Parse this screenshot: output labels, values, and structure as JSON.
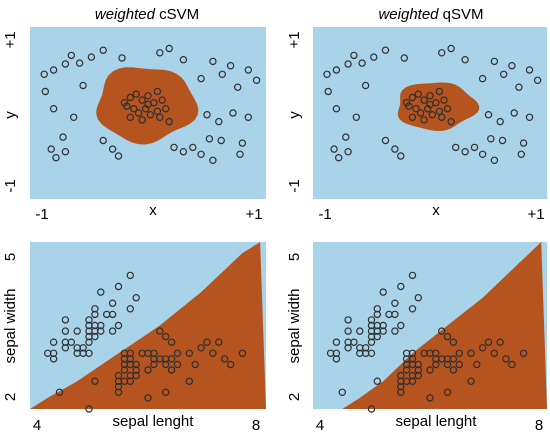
{
  "colors": {
    "background": "#a9d3e8",
    "region": "#b5541f",
    "point_stroke": "#2f2f2f"
  },
  "chart_data": [
    {
      "type": "scatter",
      "panel": "weighted-csvm-concentric",
      "title_em": "weighted",
      "title_rest": " cSVM",
      "xlabel": "x",
      "ylabel": "y",
      "xlim": [
        -1,
        1
      ],
      "ylim": [
        -1,
        1
      ],
      "xticks": [
        "-1",
        "+1"
      ],
      "yticks": [
        "-1",
        "+1"
      ],
      "decision_region": {
        "shape": "blob",
        "center": [
          -0.02,
          0.1
        ],
        "rx": 0.42,
        "ry": 0.44,
        "color": "region"
      },
      "points": [
        [
          -0.7,
          0.57
        ],
        [
          -0.58,
          0.58
        ],
        [
          -0.65,
          0.67
        ],
        [
          -0.48,
          0.65
        ],
        [
          -0.38,
          0.73
        ],
        [
          -0.22,
          0.64
        ],
        [
          0.1,
          0.7
        ],
        [
          0.18,
          0.75
        ],
        [
          0.3,
          0.62
        ],
        [
          0.55,
          0.6
        ],
        [
          0.7,
          0.55
        ],
        [
          0.85,
          0.5
        ],
        [
          -0.88,
          0.45
        ],
        [
          -0.8,
          0.5
        ],
        [
          -0.55,
          0.32
        ],
        [
          -0.87,
          0.25
        ],
        [
          0.45,
          0.4
        ],
        [
          0.63,
          0.45
        ],
        [
          0.76,
          0.3
        ],
        [
          0.92,
          0.38
        ],
        [
          -0.8,
          0.05
        ],
        [
          -0.63,
          -0.05
        ],
        [
          -0.72,
          -0.28
        ],
        [
          0.5,
          -0.02
        ],
        [
          0.6,
          -0.1
        ],
        [
          0.72,
          0.0
        ],
        [
          0.85,
          -0.05
        ],
        [
          0.52,
          -0.3
        ],
        [
          0.62,
          -0.32
        ],
        [
          0.8,
          -0.35
        ],
        [
          -0.82,
          -0.42
        ],
        [
          -0.7,
          -0.45
        ],
        [
          -0.78,
          -0.52
        ],
        [
          -0.38,
          -0.32
        ],
        [
          -0.3,
          -0.42
        ],
        [
          -0.25,
          -0.5
        ],
        [
          0.22,
          -0.4
        ],
        [
          0.3,
          -0.45
        ],
        [
          0.38,
          -0.4
        ],
        [
          0.45,
          -0.48
        ],
        [
          0.55,
          -0.55
        ],
        [
          0.78,
          -0.48
        ],
        [
          -0.15,
          0.18
        ],
        [
          -0.1,
          0.22
        ],
        [
          -0.05,
          0.15
        ],
        [
          0.0,
          0.2
        ],
        [
          0.05,
          0.12
        ],
        [
          0.08,
          0.25
        ],
        [
          0.12,
          0.15
        ],
        [
          -0.18,
          0.08
        ],
        [
          -0.12,
          0.05
        ],
        [
          -0.08,
          0.0
        ],
        [
          -0.02,
          0.05
        ],
        [
          0.02,
          -0.02
        ],
        [
          0.08,
          0.02
        ],
        [
          0.15,
          0.05
        ],
        [
          -0.2,
          0.12
        ],
        [
          -0.05,
          -0.08
        ],
        [
          0.1,
          -0.05
        ],
        [
          0.18,
          -0.1
        ],
        [
          -0.15,
          -0.05
        ],
        [
          0.0,
          0.1
        ]
      ]
    },
    {
      "type": "scatter",
      "panel": "weighted-qsvm-concentric",
      "title_em": "weighted",
      "title_rest": " qSVM",
      "xlabel": "x",
      "ylabel": "y",
      "xlim": [
        -1,
        1
      ],
      "ylim": [
        -1,
        1
      ],
      "xticks": [
        "-1",
        "+1"
      ],
      "yticks": [
        "-1",
        "+1"
      ],
      "decision_region": {
        "shape": "blob",
        "center": [
          0.05,
          0.08
        ],
        "rx": 0.34,
        "ry": 0.28,
        "color": "region"
      },
      "points": [
        [
          -0.7,
          0.57
        ],
        [
          -0.58,
          0.58
        ],
        [
          -0.65,
          0.67
        ],
        [
          -0.48,
          0.65
        ],
        [
          -0.38,
          0.73
        ],
        [
          -0.22,
          0.64
        ],
        [
          0.1,
          0.7
        ],
        [
          0.18,
          0.75
        ],
        [
          0.3,
          0.62
        ],
        [
          0.55,
          0.6
        ],
        [
          0.7,
          0.55
        ],
        [
          0.85,
          0.5
        ],
        [
          -0.88,
          0.45
        ],
        [
          -0.8,
          0.5
        ],
        [
          -0.55,
          0.32
        ],
        [
          -0.87,
          0.25
        ],
        [
          0.45,
          0.4
        ],
        [
          0.63,
          0.45
        ],
        [
          0.76,
          0.3
        ],
        [
          0.92,
          0.38
        ],
        [
          -0.8,
          0.05
        ],
        [
          -0.63,
          -0.05
        ],
        [
          -0.72,
          -0.28
        ],
        [
          0.5,
          -0.02
        ],
        [
          0.6,
          -0.1
        ],
        [
          0.72,
          0.0
        ],
        [
          0.85,
          -0.05
        ],
        [
          0.52,
          -0.3
        ],
        [
          0.62,
          -0.32
        ],
        [
          0.8,
          -0.35
        ],
        [
          -0.82,
          -0.42
        ],
        [
          -0.7,
          -0.45
        ],
        [
          -0.78,
          -0.52
        ],
        [
          -0.38,
          -0.32
        ],
        [
          -0.3,
          -0.42
        ],
        [
          -0.25,
          -0.5
        ],
        [
          0.22,
          -0.4
        ],
        [
          0.3,
          -0.45
        ],
        [
          0.38,
          -0.4
        ],
        [
          0.45,
          -0.48
        ],
        [
          0.55,
          -0.55
        ],
        [
          0.78,
          -0.48
        ],
        [
          -0.15,
          0.18
        ],
        [
          -0.1,
          0.22
        ],
        [
          -0.05,
          0.15
        ],
        [
          0.0,
          0.2
        ],
        [
          0.05,
          0.12
        ],
        [
          0.08,
          0.25
        ],
        [
          0.12,
          0.15
        ],
        [
          -0.18,
          0.08
        ],
        [
          -0.12,
          0.05
        ],
        [
          -0.08,
          0.0
        ],
        [
          -0.02,
          0.05
        ],
        [
          0.02,
          -0.02
        ],
        [
          0.08,
          0.02
        ],
        [
          0.15,
          0.05
        ],
        [
          -0.2,
          0.12
        ],
        [
          -0.05,
          -0.08
        ],
        [
          0.1,
          -0.05
        ],
        [
          0.18,
          -0.1
        ],
        [
          -0.15,
          -0.05
        ],
        [
          0.0,
          0.1
        ]
      ]
    },
    {
      "type": "scatter",
      "panel": "csvm-iris",
      "xlabel": "sepal lenght",
      "ylabel": "sepal width",
      "xlim": [
        4,
        8
      ],
      "ylim": [
        2,
        5
      ],
      "xticks": [
        "4",
        "8"
      ],
      "yticks": [
        "2",
        "5"
      ],
      "decision_boundary": [
        [
          4.0,
          2.0
        ],
        [
          4.3,
          2.2
        ],
        [
          4.8,
          2.5
        ],
        [
          5.5,
          3.0
        ],
        [
          6.2,
          3.5
        ],
        [
          6.9,
          4.1
        ],
        [
          7.6,
          4.8
        ],
        [
          7.9,
          5.0
        ]
      ],
      "points": [
        [
          4.3,
          3.0
        ],
        [
          4.4,
          2.9
        ],
        [
          4.4,
          3.0
        ],
        [
          4.4,
          3.2
        ],
        [
          4.5,
          2.3
        ],
        [
          4.6,
          3.1
        ],
        [
          4.6,
          3.2
        ],
        [
          4.6,
          3.4
        ],
        [
          4.6,
          3.6
        ],
        [
          4.7,
          3.2
        ],
        [
          4.8,
          3.0
        ],
        [
          4.8,
          3.1
        ],
        [
          4.8,
          3.4
        ],
        [
          4.9,
          3.0
        ],
        [
          4.9,
          3.1
        ],
        [
          5.0,
          3.0
        ],
        [
          5.0,
          3.2
        ],
        [
          5.0,
          3.3
        ],
        [
          5.0,
          3.4
        ],
        [
          5.0,
          3.5
        ],
        [
          5.0,
          3.6
        ],
        [
          5.1,
          3.3
        ],
        [
          5.1,
          3.4
        ],
        [
          5.1,
          3.5
        ],
        [
          5.1,
          3.7
        ],
        [
          5.1,
          3.8
        ],
        [
          5.2,
          3.4
        ],
        [
          5.2,
          3.5
        ],
        [
          5.2,
          4.1
        ],
        [
          5.3,
          3.7
        ],
        [
          5.4,
          3.4
        ],
        [
          5.4,
          3.7
        ],
        [
          5.4,
          3.9
        ],
        [
          5.5,
          3.5
        ],
        [
          5.5,
          4.2
        ],
        [
          5.7,
          3.8
        ],
        [
          5.7,
          4.4
        ],
        [
          5.8,
          4.0
        ],
        [
          5.0,
          2.0
        ],
        [
          5.1,
          2.5
        ],
        [
          5.5,
          2.3
        ],
        [
          5.5,
          2.4
        ],
        [
          5.5,
          2.5
        ],
        [
          5.5,
          2.6
        ],
        [
          5.6,
          2.5
        ],
        [
          5.6,
          2.7
        ],
        [
          5.6,
          2.8
        ],
        [
          5.6,
          2.9
        ],
        [
          5.6,
          3.0
        ],
        [
          5.7,
          2.5
        ],
        [
          5.7,
          2.6
        ],
        [
          5.7,
          2.8
        ],
        [
          5.7,
          2.9
        ],
        [
          5.7,
          3.0
        ],
        [
          5.8,
          2.6
        ],
        [
          5.8,
          2.7
        ],
        [
          5.8,
          2.8
        ],
        [
          5.9,
          3.0
        ],
        [
          6.0,
          2.2
        ],
        [
          6.0,
          2.7
        ],
        [
          6.0,
          3.0
        ],
        [
          6.1,
          2.8
        ],
        [
          6.1,
          2.9
        ],
        [
          6.1,
          3.0
        ],
        [
          6.2,
          2.9
        ],
        [
          6.2,
          3.4
        ],
        [
          6.3,
          2.3
        ],
        [
          6.3,
          2.8
        ],
        [
          6.3,
          2.9
        ],
        [
          6.3,
          3.3
        ],
        [
          6.4,
          2.7
        ],
        [
          6.4,
          2.9
        ],
        [
          6.4,
          3.2
        ],
        [
          6.5,
          2.8
        ],
        [
          6.5,
          3.0
        ],
        [
          6.7,
          2.5
        ],
        [
          6.7,
          3.0
        ],
        [
          6.8,
          2.8
        ],
        [
          6.9,
          3.1
        ],
        [
          7.0,
          3.2
        ],
        [
          7.1,
          3.0
        ],
        [
          7.2,
          3.2
        ],
        [
          7.3,
          2.9
        ],
        [
          7.4,
          2.8
        ],
        [
          7.6,
          3.0
        ]
      ]
    },
    {
      "type": "scatter",
      "panel": "qsvm-iris",
      "xlabel": "sepal lenght",
      "ylabel": "sepal width",
      "xlim": [
        4,
        8
      ],
      "ylim": [
        2,
        5
      ],
      "xticks": [
        "4",
        "8"
      ],
      "yticks": [
        "2",
        "5"
      ],
      "decision_boundary": [
        [
          4.5,
          2.0
        ],
        [
          4.8,
          2.2
        ],
        [
          5.2,
          2.5
        ],
        [
          5.7,
          3.0
        ],
        [
          6.3,
          3.5
        ],
        [
          6.9,
          4.0
        ],
        [
          7.5,
          4.6
        ],
        [
          7.9,
          5.0
        ]
      ],
      "points": [
        [
          4.3,
          3.0
        ],
        [
          4.4,
          2.9
        ],
        [
          4.4,
          3.0
        ],
        [
          4.4,
          3.2
        ],
        [
          4.5,
          2.3
        ],
        [
          4.6,
          3.1
        ],
        [
          4.6,
          3.2
        ],
        [
          4.6,
          3.4
        ],
        [
          4.6,
          3.6
        ],
        [
          4.7,
          3.2
        ],
        [
          4.8,
          3.0
        ],
        [
          4.8,
          3.1
        ],
        [
          4.8,
          3.4
        ],
        [
          4.9,
          3.0
        ],
        [
          4.9,
          3.1
        ],
        [
          5.0,
          3.0
        ],
        [
          5.0,
          3.2
        ],
        [
          5.0,
          3.3
        ],
        [
          5.0,
          3.4
        ],
        [
          5.0,
          3.5
        ],
        [
          5.0,
          3.6
        ],
        [
          5.1,
          3.3
        ],
        [
          5.1,
          3.4
        ],
        [
          5.1,
          3.5
        ],
        [
          5.1,
          3.7
        ],
        [
          5.1,
          3.8
        ],
        [
          5.2,
          3.4
        ],
        [
          5.2,
          3.5
        ],
        [
          5.2,
          4.1
        ],
        [
          5.3,
          3.7
        ],
        [
          5.4,
          3.4
        ],
        [
          5.4,
          3.7
        ],
        [
          5.4,
          3.9
        ],
        [
          5.5,
          3.5
        ],
        [
          5.5,
          4.2
        ],
        [
          5.7,
          3.8
        ],
        [
          5.7,
          4.4
        ],
        [
          5.8,
          4.0
        ],
        [
          5.0,
          2.0
        ],
        [
          5.1,
          2.5
        ],
        [
          5.5,
          2.3
        ],
        [
          5.5,
          2.4
        ],
        [
          5.5,
          2.5
        ],
        [
          5.5,
          2.6
        ],
        [
          5.6,
          2.5
        ],
        [
          5.6,
          2.7
        ],
        [
          5.6,
          2.8
        ],
        [
          5.6,
          2.9
        ],
        [
          5.6,
          3.0
        ],
        [
          5.7,
          2.5
        ],
        [
          5.7,
          2.6
        ],
        [
          5.7,
          2.8
        ],
        [
          5.7,
          2.9
        ],
        [
          5.7,
          3.0
        ],
        [
          5.8,
          2.6
        ],
        [
          5.8,
          2.7
        ],
        [
          5.8,
          2.8
        ],
        [
          5.9,
          3.0
        ],
        [
          6.0,
          2.2
        ],
        [
          6.0,
          2.7
        ],
        [
          6.0,
          3.0
        ],
        [
          6.1,
          2.8
        ],
        [
          6.1,
          2.9
        ],
        [
          6.1,
          3.0
        ],
        [
          6.2,
          2.9
        ],
        [
          6.2,
          3.4
        ],
        [
          6.3,
          2.3
        ],
        [
          6.3,
          2.8
        ],
        [
          6.3,
          2.9
        ],
        [
          6.3,
          3.3
        ],
        [
          6.4,
          2.7
        ],
        [
          6.4,
          2.9
        ],
        [
          6.4,
          3.2
        ],
        [
          6.5,
          2.8
        ],
        [
          6.5,
          3.0
        ],
        [
          6.7,
          2.5
        ],
        [
          6.7,
          3.0
        ],
        [
          6.8,
          2.8
        ],
        [
          6.9,
          3.1
        ],
        [
          7.0,
          3.2
        ],
        [
          7.1,
          3.0
        ],
        [
          7.2,
          3.2
        ],
        [
          7.3,
          2.9
        ],
        [
          7.4,
          2.8
        ],
        [
          7.6,
          3.0
        ]
      ]
    }
  ]
}
